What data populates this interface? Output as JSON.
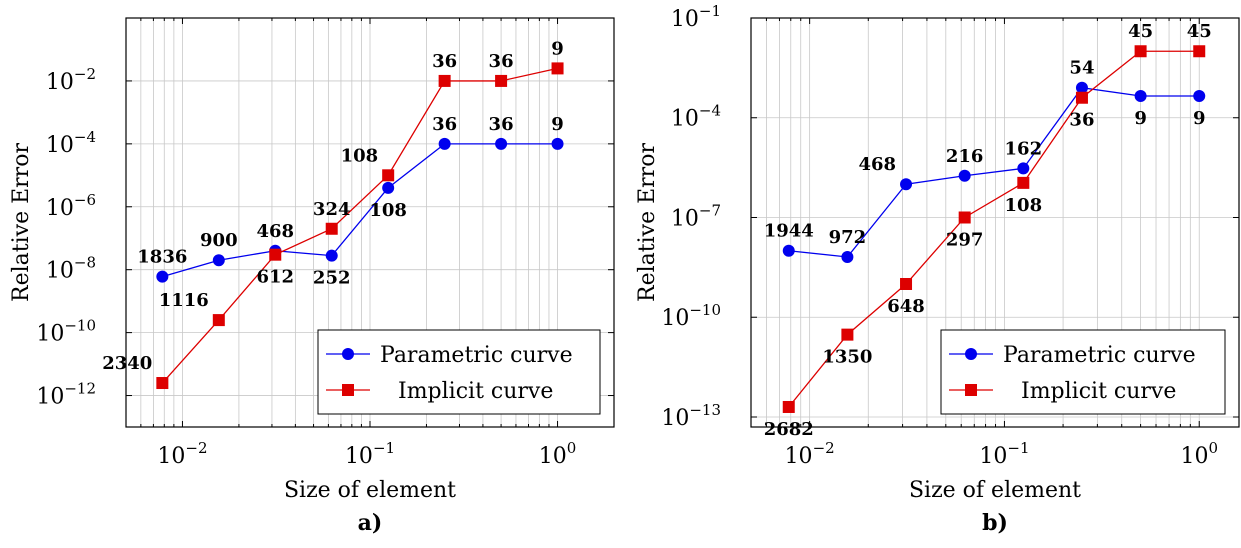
{
  "chart_data": [
    {
      "type": "line",
      "panel_label": "a)",
      "xlabel": "Size of element",
      "ylabel": "Relative Error",
      "xscale": "log",
      "yscale": "log",
      "xlim": [
        0.005,
        2
      ],
      "ylim": [
        1e-13,
        1
      ],
      "grid": true,
      "legend_position": "bottom-right",
      "x_ticks": [
        0.01,
        0.1,
        1
      ],
      "x_tick_labels": [
        [
          "10",
          "−2"
        ],
        [
          "10",
          "−1"
        ],
        [
          "10",
          "0"
        ]
      ],
      "y_ticks": [
        1e-12,
        1e-10,
        1e-08,
        1e-06,
        0.0001,
        0.01
      ],
      "y_tick_labels": [
        [
          "10",
          "−12"
        ],
        [
          "10",
          "−10"
        ],
        [
          "10",
          "−8"
        ],
        [
          "10",
          "−6"
        ],
        [
          "10",
          "−4"
        ],
        [
          "10",
          "−2"
        ]
      ],
      "x": [
        0.0078125,
        0.015625,
        0.03125,
        0.0625,
        0.125,
        0.25,
        0.5,
        1
      ],
      "series": [
        {
          "name": "Parametric curve",
          "color": "#0000ee",
          "marker": "circle",
          "values": [
            6e-09,
            2e-08,
            4e-08,
            2.8e-08,
            4e-06,
            0.0001,
            0.0001,
            0.0001
          ],
          "labels": [
            "1836",
            "900",
            "468",
            "252",
            "108",
            "36",
            "36",
            "9"
          ],
          "label_pos": [
            "above",
            "above",
            "above",
            "below",
            "below",
            "above",
            "above",
            "above"
          ]
        },
        {
          "name": "Implicit curve",
          "color": "#dd0000",
          "marker": "square",
          "values": [
            2.5e-12,
            2.5e-10,
            3e-08,
            2e-07,
            1e-05,
            0.01,
            0.01,
            0.025
          ],
          "labels": [
            "2340",
            "1116",
            "612",
            "324",
            "108",
            "36",
            "36",
            "9"
          ],
          "label_pos": [
            "above-left",
            "above-left",
            "below",
            "above",
            "above-left",
            "above",
            "above",
            "above"
          ]
        }
      ]
    },
    {
      "type": "line",
      "panel_label": "b)",
      "xlabel": "Size of element",
      "ylabel": "Relative Error",
      "xscale": "log",
      "yscale": "log",
      "xlim": [
        0.005,
        1.6
      ],
      "ylim": [
        5e-14,
        0.1
      ],
      "grid": true,
      "legend_position": "bottom-right",
      "x_ticks": [
        0.01,
        0.1,
        1
      ],
      "x_tick_labels": [
        [
          "10",
          "−2"
        ],
        [
          "10",
          "−1"
        ],
        [
          "10",
          "0"
        ]
      ],
      "y_ticks": [
        1e-13,
        1e-10,
        1e-07,
        0.0001,
        0.1
      ],
      "y_tick_labels": [
        [
          "10",
          "−13"
        ],
        [
          "10",
          "−10"
        ],
        [
          "10",
          "−7"
        ],
        [
          "10",
          "−4"
        ],
        [
          "10",
          "−1"
        ]
      ],
      "x": [
        0.0078125,
        0.015625,
        0.03125,
        0.0625,
        0.125,
        0.25,
        0.5,
        1
      ],
      "series": [
        {
          "name": "Parametric curve",
          "color": "#0000ee",
          "marker": "circle",
          "values": [
            1e-08,
            6.5e-09,
            1e-06,
            1.8e-06,
            3e-06,
            0.0008,
            0.00045,
            0.00045
          ],
          "labels": [
            "1944",
            "972",
            "468",
            "216",
            "162",
            "54",
            "9",
            "9"
          ],
          "label_pos": [
            "above",
            "above",
            "above-left",
            "above",
            "above",
            "above",
            "below",
            "below"
          ]
        },
        {
          "name": "Implicit curve",
          "color": "#dd0000",
          "marker": "square",
          "values": [
            2e-13,
            3e-11,
            1e-09,
            1e-07,
            1.1e-06,
            0.0004,
            0.01,
            0.01
          ],
          "labels": [
            "2682",
            "1350",
            "648",
            "297",
            "108",
            "36",
            "45",
            "45"
          ],
          "label_pos": [
            "below",
            "below",
            "below",
            "below",
            "below",
            "below",
            "above",
            "above"
          ]
        }
      ]
    }
  ]
}
